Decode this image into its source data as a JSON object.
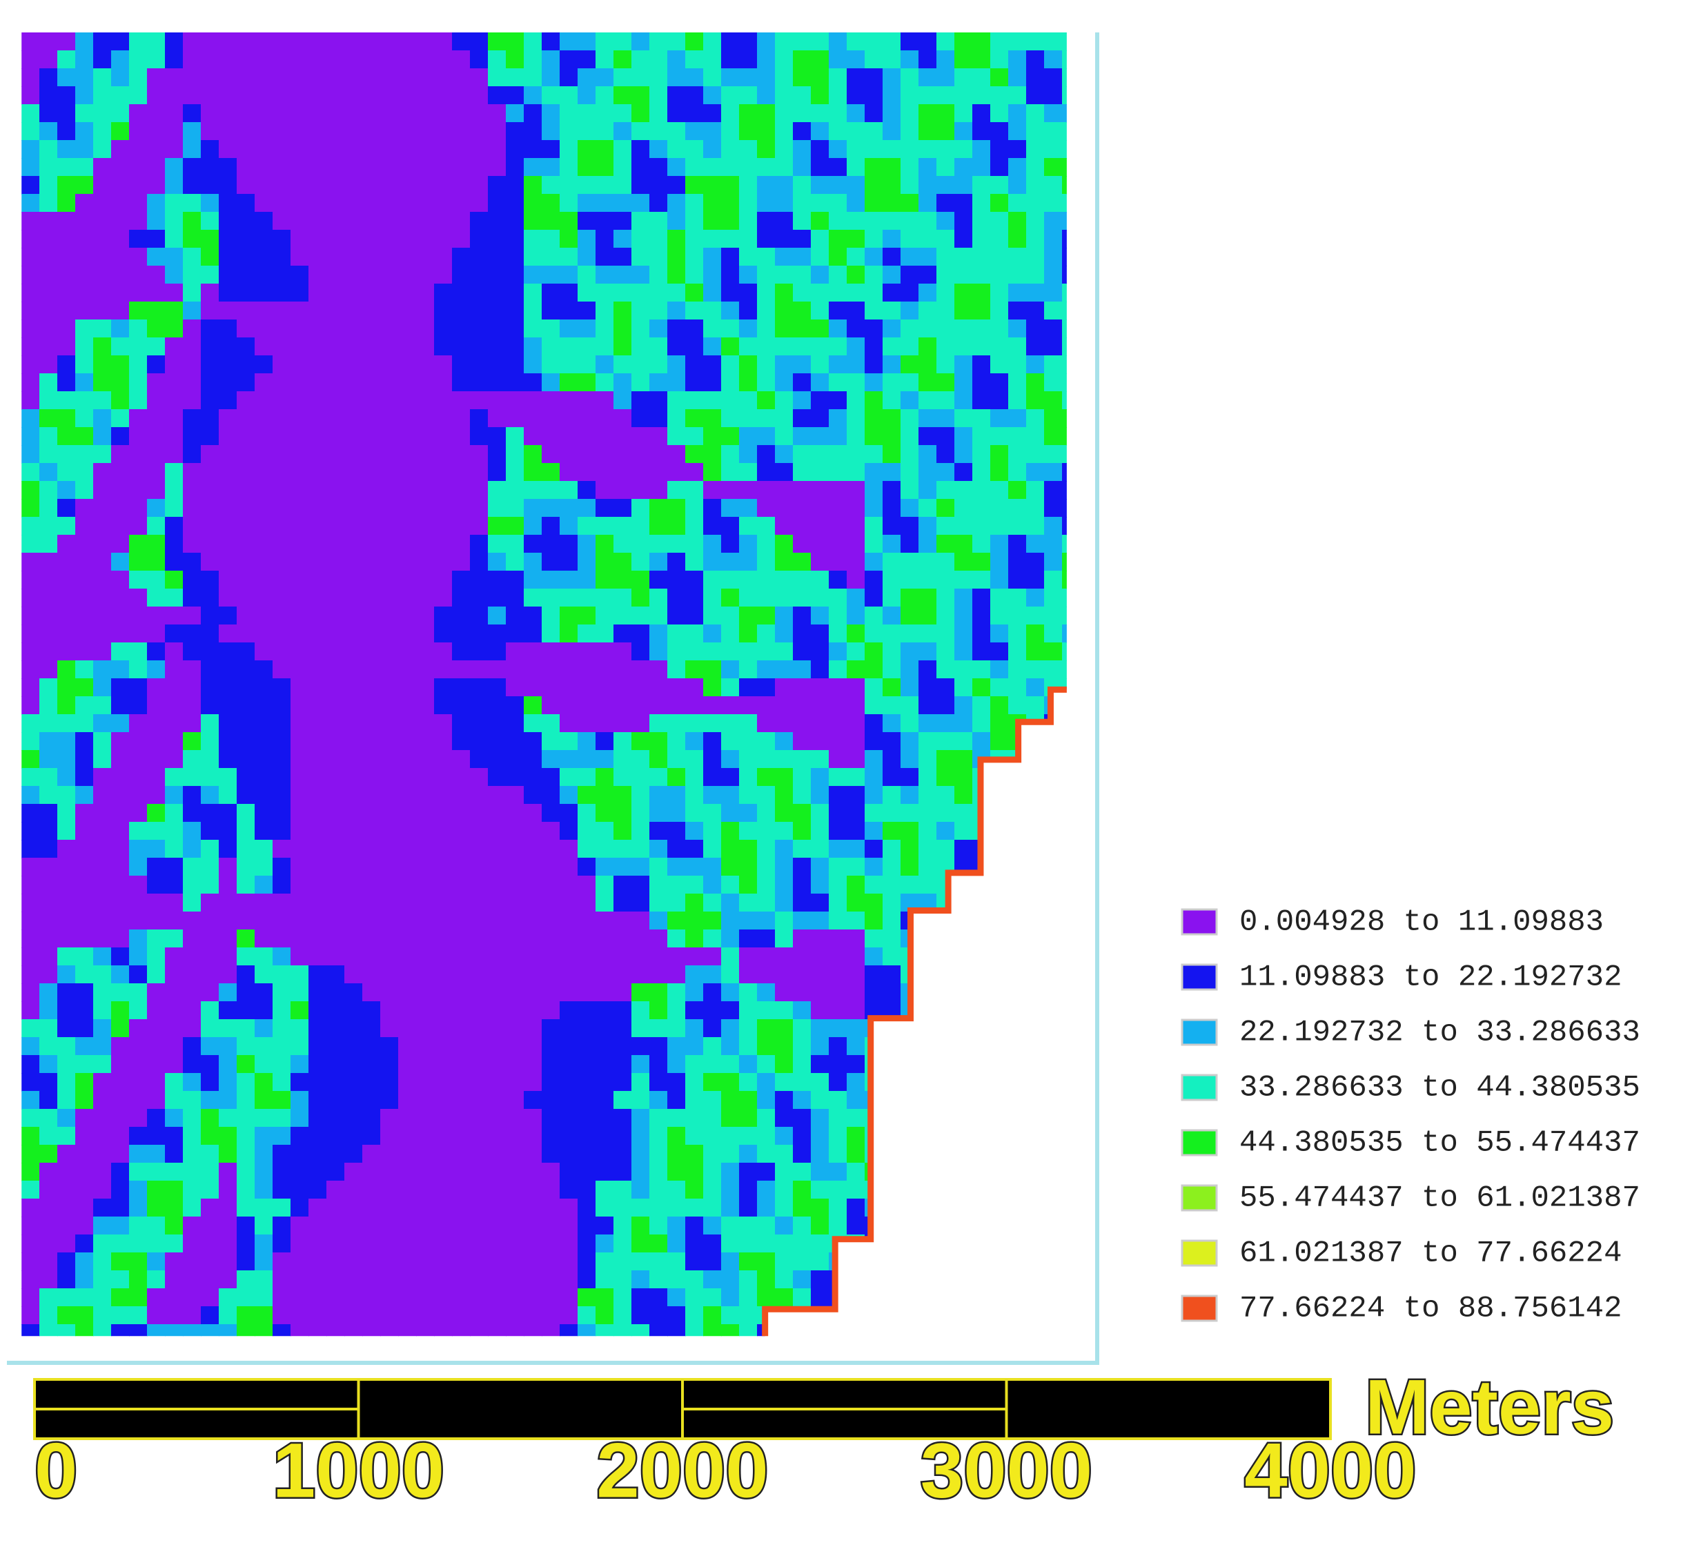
{
  "legend": {
    "items": [
      {
        "label": "0.004928 to 11.09883",
        "color": "#8a12ef"
      },
      {
        "label": "11.09883 to 22.192732",
        "color": "#1414f0"
      },
      {
        "label": "22.192732 to 33.286633",
        "color": "#14b0f0"
      },
      {
        "label": "33.286633 to 44.380535",
        "color": "#14f0c0"
      },
      {
        "label": "44.380535 to 55.474437",
        "color": "#14f01e"
      },
      {
        "label": "55.474437 to 61.021387",
        "color": "#8cf01e"
      },
      {
        "label": "61.021387 to 77.66224",
        "color": "#dcf01e"
      },
      {
        "label": "77.66224 to 88.756142",
        "color": "#f0501e"
      }
    ]
  },
  "scale_bar": {
    "ticks": [
      0,
      1000,
      2000,
      3000,
      4000
    ],
    "unit": "Meters"
  }
}
